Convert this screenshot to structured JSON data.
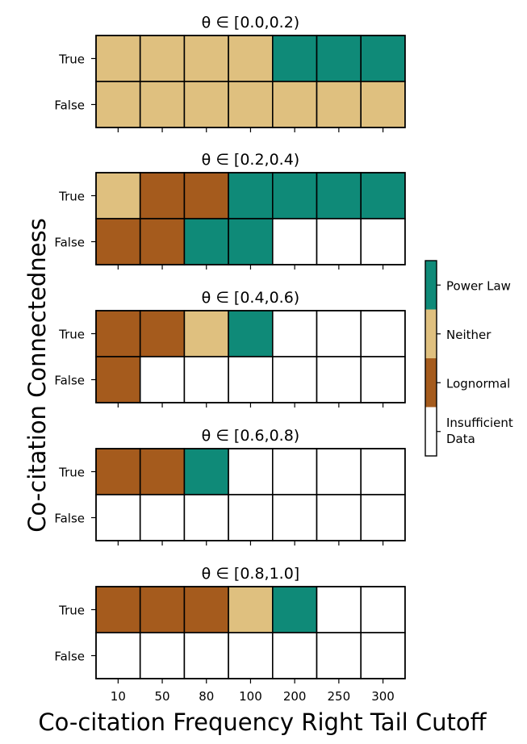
{
  "chart_data": {
    "type": "heatmap",
    "ylabel": "Co-citation Connectedness",
    "xlabel": "Co-citation Frequency Right Tail Cutoff",
    "x_categories": [
      "10",
      "50",
      "80",
      "100",
      "200",
      "250",
      "300"
    ],
    "y_categories": [
      "True",
      "False"
    ],
    "legend": {
      "placement": "right",
      "entries": [
        {
          "key": "power_law",
          "label": "Power Law",
          "color": "#0f8a78"
        },
        {
          "key": "neither",
          "label": "Neither",
          "color": "#dfc07f"
        },
        {
          "key": "lognormal",
          "label": "Lognormal",
          "color": "#a55b1d"
        },
        {
          "key": "insufficient",
          "label": "Insufficient Data",
          "color": "#ffffff"
        }
      ]
    },
    "panels": [
      {
        "title": "θ ∈ [0.0,0.2)",
        "rows": [
          [
            "neither",
            "neither",
            "neither",
            "neither",
            "power_law",
            "power_law",
            "power_law"
          ],
          [
            "neither",
            "neither",
            "neither",
            "neither",
            "neither",
            "neither",
            "neither"
          ]
        ]
      },
      {
        "title": "θ ∈ [0.2,0.4)",
        "rows": [
          [
            "neither",
            "lognormal",
            "lognormal",
            "power_law",
            "power_law",
            "power_law",
            "power_law"
          ],
          [
            "lognormal",
            "lognormal",
            "power_law",
            "power_law",
            "insufficient",
            "insufficient",
            "insufficient"
          ]
        ]
      },
      {
        "title": "θ ∈ [0.4,0.6)",
        "rows": [
          [
            "lognormal",
            "lognormal",
            "neither",
            "power_law",
            "insufficient",
            "insufficient",
            "insufficient"
          ],
          [
            "lognormal",
            "insufficient",
            "insufficient",
            "insufficient",
            "insufficient",
            "insufficient",
            "insufficient"
          ]
        ]
      },
      {
        "title": "θ ∈ [0.6,0.8)",
        "rows": [
          [
            "lognormal",
            "lognormal",
            "power_law",
            "insufficient",
            "insufficient",
            "insufficient",
            "insufficient"
          ],
          [
            "insufficient",
            "insufficient",
            "insufficient",
            "insufficient",
            "insufficient",
            "insufficient",
            "insufficient"
          ]
        ]
      },
      {
        "title": "θ ∈ [0.8,1.0]",
        "rows": [
          [
            "lognormal",
            "lognormal",
            "lognormal",
            "neither",
            "power_law",
            "insufficient",
            "insufficient"
          ],
          [
            "insufficient",
            "insufficient",
            "insufficient",
            "insufficient",
            "insufficient",
            "insufficient",
            "insufficient"
          ]
        ]
      }
    ]
  }
}
